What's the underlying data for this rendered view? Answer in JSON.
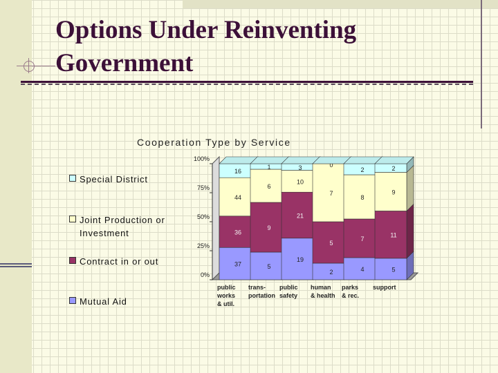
{
  "slide": {
    "title_line1": "Options Under Reinventing",
    "title_line2": "Government"
  },
  "chart_data": {
    "type": "bar",
    "stacked": true,
    "percent_stacked": true,
    "three_d": true,
    "title": "Cooperation Type by Service",
    "xlabel": "",
    "ylabel": "",
    "y_tick_labels": [
      "0%",
      "25%",
      "50%",
      "75%",
      "100%"
    ],
    "categories": [
      [
        "public",
        "works",
        "& util."
      ],
      [
        "trans-",
        "portation"
      ],
      [
        "public",
        "safety"
      ],
      [
        "human",
        "& health"
      ],
      [
        "parks",
        "& rec."
      ],
      [
        "support"
      ]
    ],
    "series": [
      {
        "name": "Mutual Aid",
        "color": "#9999ff",
        "values": [
          37,
          5,
          19,
          2,
          4,
          5
        ]
      },
      {
        "name": "Contract in or out",
        "color": "#993366",
        "values": [
          36,
          9,
          21,
          5,
          7,
          11
        ]
      },
      {
        "name": "Joint Production or Investment",
        "color": "#ffffcc",
        "values": [
          44,
          6,
          10,
          7,
          8,
          9
        ]
      },
      {
        "name": "Special District",
        "color": "#ccffff",
        "values": [
          16,
          1,
          3,
          0,
          2,
          2
        ]
      }
    ],
    "legend_position": "left",
    "grid": false
  }
}
